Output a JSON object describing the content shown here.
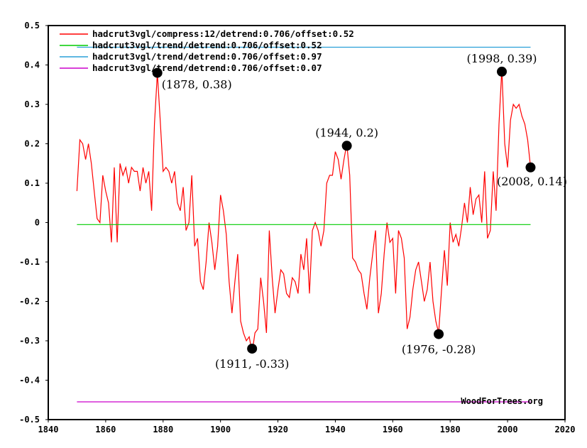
{
  "chart_data": {
    "type": "line",
    "title": "",
    "xlabel": "",
    "ylabel": "",
    "xlim": [
      1840,
      2020
    ],
    "ylim": [
      -0.5,
      0.5
    ],
    "x_ticks": [
      "1840",
      "1860",
      "1880",
      "1900",
      "1920",
      "1940",
      "1960",
      "1980",
      "2000",
      "2020"
    ],
    "y_ticks": [
      "-0.5",
      "-0.4",
      "-0.3",
      "-0.2",
      "-0.1",
      "0",
      "0.1",
      "0.2",
      "0.3",
      "0.4",
      "0.5"
    ],
    "grid": false,
    "legend_position": "top-left",
    "series": [
      {
        "name": "hadcrut3vgl/compress:12/detrend:0.706/offset:0.52",
        "color": "#ff0000",
        "x": [
          1850,
          1851,
          1852,
          1853,
          1854,
          1855,
          1856,
          1857,
          1858,
          1859,
          1860,
          1861,
          1862,
          1863,
          1864,
          1865,
          1866,
          1867,
          1868,
          1869,
          1870,
          1871,
          1872,
          1873,
          1874,
          1875,
          1876,
          1877,
          1878,
          1879,
          1880,
          1881,
          1882,
          1883,
          1884,
          1885,
          1886,
          1887,
          1888,
          1889,
          1890,
          1891,
          1892,
          1893,
          1894,
          1895,
          1896,
          1897,
          1898,
          1899,
          1900,
          1901,
          1902,
          1903,
          1904,
          1905,
          1906,
          1907,
          1908,
          1909,
          1910,
          1911,
          1912,
          1913,
          1914,
          1915,
          1916,
          1917,
          1918,
          1919,
          1920,
          1921,
          1922,
          1923,
          1924,
          1925,
          1926,
          1927,
          1928,
          1929,
          1930,
          1931,
          1932,
          1933,
          1934,
          1935,
          1936,
          1937,
          1938,
          1939,
          1940,
          1941,
          1942,
          1943,
          1944,
          1945,
          1946,
          1947,
          1948,
          1949,
          1950,
          1951,
          1952,
          1953,
          1954,
          1955,
          1956,
          1957,
          1958,
          1959,
          1960,
          1961,
          1962,
          1963,
          1964,
          1965,
          1966,
          1967,
          1968,
          1969,
          1970,
          1971,
          1972,
          1973,
          1974,
          1975,
          1976,
          1977,
          1978,
          1979,
          1980,
          1981,
          1982,
          1983,
          1984,
          1985,
          1986,
          1987,
          1988,
          1989,
          1990,
          1991,
          1992,
          1993,
          1994,
          1995,
          1996,
          1997,
          1998,
          1999,
          2000,
          2001,
          2002,
          2003,
          2004,
          2005,
          2006,
          2007,
          2008
        ],
        "values": [
          0.08,
          0.21,
          0.2,
          0.16,
          0.2,
          0.15,
          0.08,
          0.01,
          0.0,
          0.12,
          0.08,
          0.05,
          -0.05,
          0.14,
          -0.05,
          0.15,
          0.12,
          0.14,
          0.1,
          0.14,
          0.13,
          0.13,
          0.08,
          0.14,
          0.1,
          0.13,
          0.03,
          0.25,
          0.38,
          0.26,
          0.13,
          0.14,
          0.13,
          0.1,
          0.13,
          0.05,
          0.03,
          0.09,
          -0.02,
          0.0,
          0.12,
          -0.06,
          -0.04,
          -0.15,
          -0.17,
          -0.1,
          0.0,
          -0.05,
          -0.12,
          -0.06,
          0.07,
          0.03,
          -0.03,
          -0.15,
          -0.23,
          -0.15,
          -0.08,
          -0.25,
          -0.28,
          -0.3,
          -0.29,
          -0.33,
          -0.28,
          -0.27,
          -0.14,
          -0.2,
          -0.28,
          -0.02,
          -0.14,
          -0.23,
          -0.17,
          -0.12,
          -0.13,
          -0.18,
          -0.19,
          -0.14,
          -0.15,
          -0.18,
          -0.08,
          -0.12,
          -0.04,
          -0.18,
          -0.02,
          0.0,
          -0.02,
          -0.06,
          -0.02,
          0.1,
          0.12,
          0.12,
          0.18,
          0.16,
          0.11,
          0.16,
          0.2,
          0.12,
          -0.09,
          -0.1,
          -0.12,
          -0.13,
          -0.18,
          -0.22,
          -0.14,
          -0.08,
          -0.02,
          -0.23,
          -0.18,
          -0.08,
          0.0,
          -0.05,
          -0.04,
          -0.18,
          -0.02,
          -0.04,
          -0.09,
          -0.27,
          -0.24,
          -0.17,
          -0.12,
          -0.1,
          -0.15,
          -0.2,
          -0.17,
          -0.1,
          -0.2,
          -0.25,
          -0.28,
          -0.17,
          -0.07,
          -0.16,
          0.0,
          -0.05,
          -0.03,
          -0.06,
          -0.01,
          0.05,
          0.0,
          0.09,
          0.02,
          0.06,
          0.07,
          0.0,
          0.13,
          -0.04,
          -0.02,
          0.13,
          0.03,
          0.25,
          0.39,
          0.2,
          0.14,
          0.26,
          0.3,
          0.29,
          0.3,
          0.27,
          0.25,
          0.21,
          0.14
        ]
      },
      {
        "name": "hadcrut3vgl/trend/detrend:0.706/offset:0.52",
        "color": "#00cc00",
        "x": [
          1850,
          2008
        ],
        "values": [
          -0.005,
          -0.005
        ]
      },
      {
        "name": "hadcrut3vgl/trend/detrend:0.706/offset:0.97",
        "color": "#2aa0d8",
        "x": [
          1850,
          2008
        ],
        "values": [
          0.445,
          0.445
        ]
      },
      {
        "name": "hadcrut3vgl/trend/detrend:0.706/offset:0.07",
        "color": "#cc00cc",
        "x": [
          1850,
          2008
        ],
        "values": [
          -0.455,
          -0.455
        ]
      }
    ],
    "annotations": [
      {
        "x": 1878,
        "y": 0.38,
        "label": "(1878, 0.38)",
        "placement": "right-below"
      },
      {
        "x": 1911,
        "y": -0.32,
        "label": "(1911, -0.33)",
        "placement": "below"
      },
      {
        "x": 1944,
        "y": 0.195,
        "label": "(1944, 0.2)",
        "placement": "above"
      },
      {
        "x": 1976,
        "y": -0.283,
        "label": "(1976, -0.28)",
        "placement": "below"
      },
      {
        "x": 1998,
        "y": 0.383,
        "label": "(1998, 0.39)",
        "placement": "above"
      },
      {
        "x": 2008,
        "y": 0.14,
        "label": "(2008, 0.14)",
        "placement": "below"
      }
    ],
    "credit": "WoodForTrees.org"
  }
}
